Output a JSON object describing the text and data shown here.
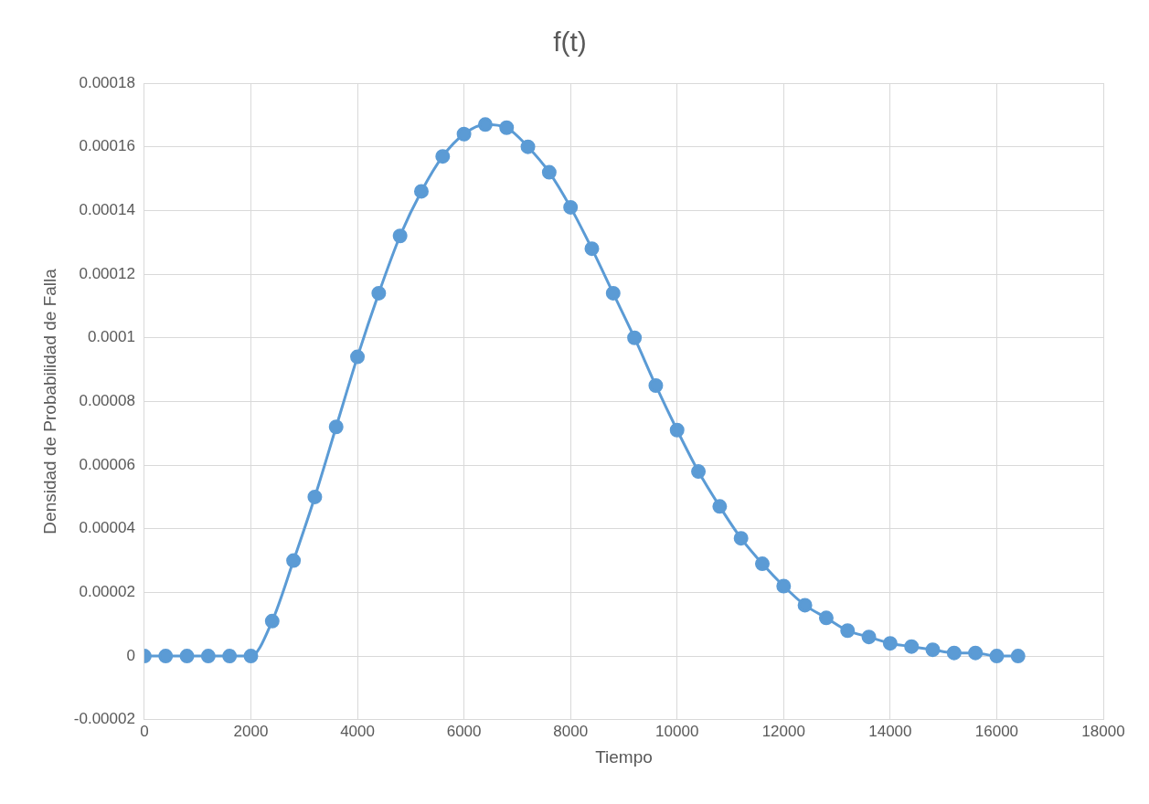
{
  "chart_data": {
    "type": "line",
    "title": "f(t)",
    "xlabel": "Tiempo",
    "ylabel": "Densidad de Probabilidad de Falla",
    "x": [
      0,
      400,
      800,
      1200,
      1600,
      2000,
      2400,
      2800,
      3200,
      3600,
      4000,
      4400,
      4800,
      5200,
      5600,
      6000,
      6400,
      6800,
      7200,
      7600,
      8000,
      8400,
      8800,
      9200,
      9600,
      10000,
      10400,
      10800,
      11200,
      11600,
      12000,
      12400,
      12800,
      13200,
      13600,
      14000,
      14400,
      14800,
      15200,
      15600,
      16000,
      16400
    ],
    "series": [
      {
        "color": "#5b9bd5",
        "values": [
          0,
          0,
          0,
          0,
          0,
          0,
          1.1e-05,
          3e-05,
          5e-05,
          7.2e-05,
          9.4e-05,
          0.000114,
          0.000132,
          0.000146,
          0.000157,
          0.000164,
          0.000167,
          0.000166,
          0.00016,
          0.000152,
          0.000141,
          0.000128,
          0.000114,
          0.0001,
          8.5e-05,
          7.1e-05,
          5.8e-05,
          4.7e-05,
          3.7e-05,
          2.9e-05,
          2.2e-05,
          1.6e-05,
          1.2e-05,
          8e-06,
          6e-06,
          4e-06,
          3e-06,
          2e-06,
          1e-06,
          1e-06,
          0,
          0
        ]
      }
    ],
    "xlim": [
      0,
      18000
    ],
    "xticks": [
      0,
      2000,
      4000,
      6000,
      8000,
      10000,
      12000,
      14000,
      16000,
      18000
    ],
    "ylim": [
      -2e-05,
      0.00018
    ],
    "yticks": [
      {
        "value": -2e-05,
        "label": "-0.00002"
      },
      0,
      {
        "value": 2e-05,
        "label": "0.00002"
      },
      {
        "value": 4e-05,
        "label": "0.00004"
      },
      {
        "value": 6e-05,
        "label": "0.00006"
      },
      {
        "value": 8e-05,
        "label": "0.00008"
      },
      0.0001,
      0.00012,
      0.00014,
      0.00016,
      0.00018
    ],
    "grid": true,
    "legend": false,
    "marker": "circle",
    "line_style": "solid"
  }
}
